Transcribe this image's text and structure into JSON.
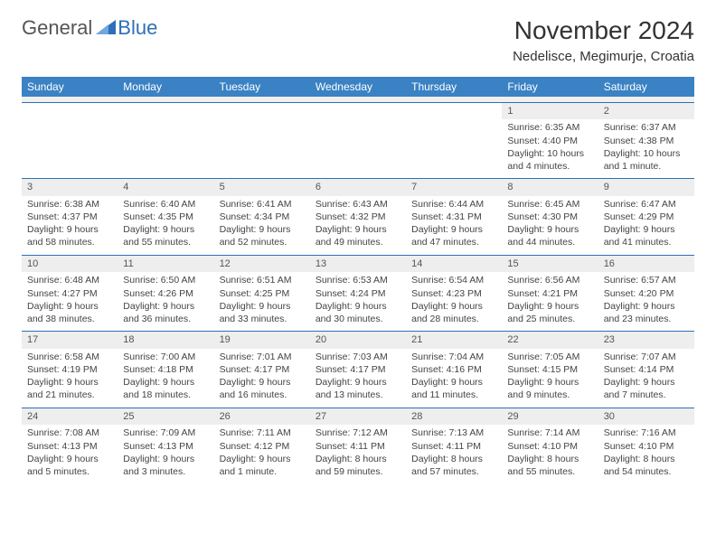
{
  "logo": {
    "word1": "General",
    "word2": "Blue"
  },
  "title": "November 2024",
  "location": "Nedelisce, Megimurje, Croatia",
  "colors": {
    "header_bg": "#3a82c4",
    "header_text": "#ffffff",
    "daynum_bg": "#eeeeee",
    "border": "#2e6fb7",
    "logo_blue": "#2e6fb7",
    "text": "#333333"
  },
  "dow": [
    "Sunday",
    "Monday",
    "Tuesday",
    "Wednesday",
    "Thursday",
    "Friday",
    "Saturday"
  ],
  "weeks": [
    [
      {
        "n": "",
        "sr": "",
        "ss": "",
        "dl": ""
      },
      {
        "n": "",
        "sr": "",
        "ss": "",
        "dl": ""
      },
      {
        "n": "",
        "sr": "",
        "ss": "",
        "dl": ""
      },
      {
        "n": "",
        "sr": "",
        "ss": "",
        "dl": ""
      },
      {
        "n": "",
        "sr": "",
        "ss": "",
        "dl": ""
      },
      {
        "n": "1",
        "sr": "Sunrise: 6:35 AM",
        "ss": "Sunset: 4:40 PM",
        "dl": "Daylight: 10 hours and 4 minutes."
      },
      {
        "n": "2",
        "sr": "Sunrise: 6:37 AM",
        "ss": "Sunset: 4:38 PM",
        "dl": "Daylight: 10 hours and 1 minute."
      }
    ],
    [
      {
        "n": "3",
        "sr": "Sunrise: 6:38 AM",
        "ss": "Sunset: 4:37 PM",
        "dl": "Daylight: 9 hours and 58 minutes."
      },
      {
        "n": "4",
        "sr": "Sunrise: 6:40 AM",
        "ss": "Sunset: 4:35 PM",
        "dl": "Daylight: 9 hours and 55 minutes."
      },
      {
        "n": "5",
        "sr": "Sunrise: 6:41 AM",
        "ss": "Sunset: 4:34 PM",
        "dl": "Daylight: 9 hours and 52 minutes."
      },
      {
        "n": "6",
        "sr": "Sunrise: 6:43 AM",
        "ss": "Sunset: 4:32 PM",
        "dl": "Daylight: 9 hours and 49 minutes."
      },
      {
        "n": "7",
        "sr": "Sunrise: 6:44 AM",
        "ss": "Sunset: 4:31 PM",
        "dl": "Daylight: 9 hours and 47 minutes."
      },
      {
        "n": "8",
        "sr": "Sunrise: 6:45 AM",
        "ss": "Sunset: 4:30 PM",
        "dl": "Daylight: 9 hours and 44 minutes."
      },
      {
        "n": "9",
        "sr": "Sunrise: 6:47 AM",
        "ss": "Sunset: 4:29 PM",
        "dl": "Daylight: 9 hours and 41 minutes."
      }
    ],
    [
      {
        "n": "10",
        "sr": "Sunrise: 6:48 AM",
        "ss": "Sunset: 4:27 PM",
        "dl": "Daylight: 9 hours and 38 minutes."
      },
      {
        "n": "11",
        "sr": "Sunrise: 6:50 AM",
        "ss": "Sunset: 4:26 PM",
        "dl": "Daylight: 9 hours and 36 minutes."
      },
      {
        "n": "12",
        "sr": "Sunrise: 6:51 AM",
        "ss": "Sunset: 4:25 PM",
        "dl": "Daylight: 9 hours and 33 minutes."
      },
      {
        "n": "13",
        "sr": "Sunrise: 6:53 AM",
        "ss": "Sunset: 4:24 PM",
        "dl": "Daylight: 9 hours and 30 minutes."
      },
      {
        "n": "14",
        "sr": "Sunrise: 6:54 AM",
        "ss": "Sunset: 4:23 PM",
        "dl": "Daylight: 9 hours and 28 minutes."
      },
      {
        "n": "15",
        "sr": "Sunrise: 6:56 AM",
        "ss": "Sunset: 4:21 PM",
        "dl": "Daylight: 9 hours and 25 minutes."
      },
      {
        "n": "16",
        "sr": "Sunrise: 6:57 AM",
        "ss": "Sunset: 4:20 PM",
        "dl": "Daylight: 9 hours and 23 minutes."
      }
    ],
    [
      {
        "n": "17",
        "sr": "Sunrise: 6:58 AM",
        "ss": "Sunset: 4:19 PM",
        "dl": "Daylight: 9 hours and 21 minutes."
      },
      {
        "n": "18",
        "sr": "Sunrise: 7:00 AM",
        "ss": "Sunset: 4:18 PM",
        "dl": "Daylight: 9 hours and 18 minutes."
      },
      {
        "n": "19",
        "sr": "Sunrise: 7:01 AM",
        "ss": "Sunset: 4:17 PM",
        "dl": "Daylight: 9 hours and 16 minutes."
      },
      {
        "n": "20",
        "sr": "Sunrise: 7:03 AM",
        "ss": "Sunset: 4:17 PM",
        "dl": "Daylight: 9 hours and 13 minutes."
      },
      {
        "n": "21",
        "sr": "Sunrise: 7:04 AM",
        "ss": "Sunset: 4:16 PM",
        "dl": "Daylight: 9 hours and 11 minutes."
      },
      {
        "n": "22",
        "sr": "Sunrise: 7:05 AM",
        "ss": "Sunset: 4:15 PM",
        "dl": "Daylight: 9 hours and 9 minutes."
      },
      {
        "n": "23",
        "sr": "Sunrise: 7:07 AM",
        "ss": "Sunset: 4:14 PM",
        "dl": "Daylight: 9 hours and 7 minutes."
      }
    ],
    [
      {
        "n": "24",
        "sr": "Sunrise: 7:08 AM",
        "ss": "Sunset: 4:13 PM",
        "dl": "Daylight: 9 hours and 5 minutes."
      },
      {
        "n": "25",
        "sr": "Sunrise: 7:09 AM",
        "ss": "Sunset: 4:13 PM",
        "dl": "Daylight: 9 hours and 3 minutes."
      },
      {
        "n": "26",
        "sr": "Sunrise: 7:11 AM",
        "ss": "Sunset: 4:12 PM",
        "dl": "Daylight: 9 hours and 1 minute."
      },
      {
        "n": "27",
        "sr": "Sunrise: 7:12 AM",
        "ss": "Sunset: 4:11 PM",
        "dl": "Daylight: 8 hours and 59 minutes."
      },
      {
        "n": "28",
        "sr": "Sunrise: 7:13 AM",
        "ss": "Sunset: 4:11 PM",
        "dl": "Daylight: 8 hours and 57 minutes."
      },
      {
        "n": "29",
        "sr": "Sunrise: 7:14 AM",
        "ss": "Sunset: 4:10 PM",
        "dl": "Daylight: 8 hours and 55 minutes."
      },
      {
        "n": "30",
        "sr": "Sunrise: 7:16 AM",
        "ss": "Sunset: 4:10 PM",
        "dl": "Daylight: 8 hours and 54 minutes."
      }
    ]
  ]
}
